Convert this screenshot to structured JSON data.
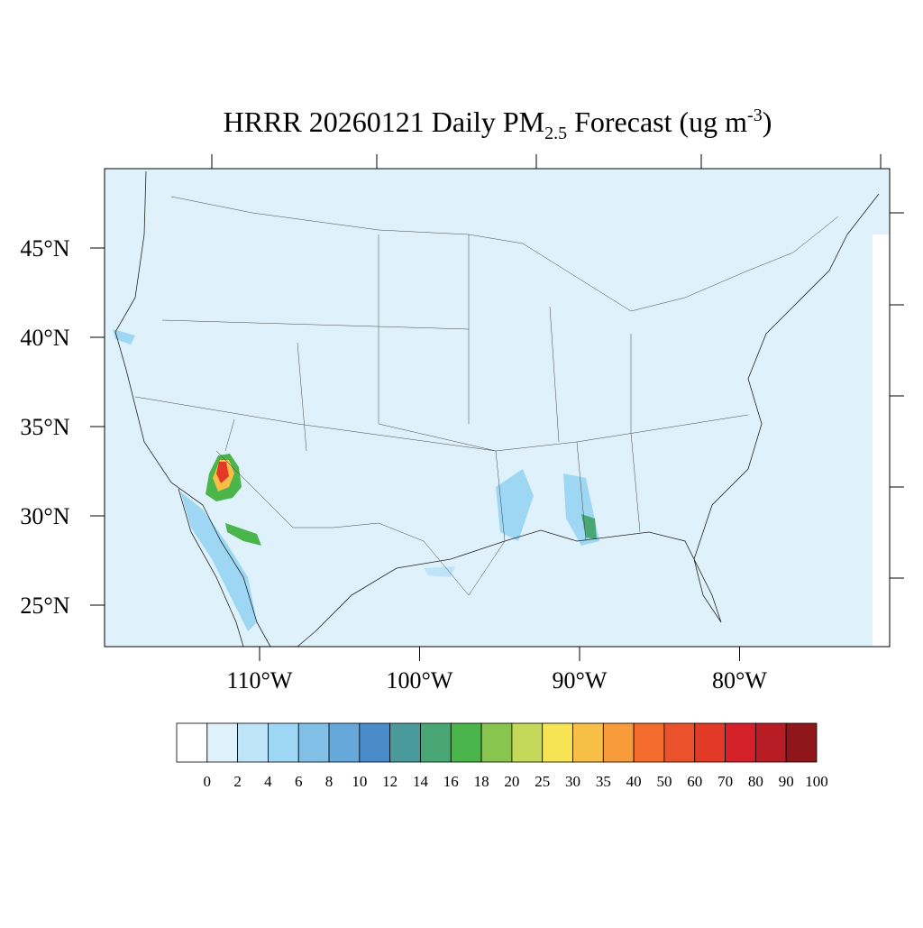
{
  "title": {
    "parts": [
      "HRRR 20260121 Daily PM",
      "2.5",
      " Forecast (ug m",
      "-3",
      ")"
    ]
  },
  "map": {
    "lat_ticks": [
      {
        "value": 45,
        "label": "45°N"
      },
      {
        "value": 40,
        "label": "40°N"
      },
      {
        "value": 35,
        "label": "35°N"
      },
      {
        "value": 30,
        "label": "30°N"
      },
      {
        "value": 25,
        "label": "25°N"
      }
    ],
    "lon_ticks": [
      {
        "value": -110,
        "label": "110°W"
      },
      {
        "value": -100,
        "label": "100°W"
      },
      {
        "value": -90,
        "label": "90°W"
      },
      {
        "value": -80,
        "label": "80°W"
      }
    ]
  },
  "colorbar": {
    "levels": [
      0,
      2,
      4,
      6,
      8,
      10,
      12,
      14,
      16,
      18,
      20,
      25,
      30,
      35,
      40,
      50,
      60,
      70,
      80,
      90,
      100
    ],
    "colors": [
      "#ffffff",
      "#dff2fb",
      "#bde5f7",
      "#9dd7f3",
      "#82bfe6",
      "#67a8da",
      "#4a8cc9",
      "#4a9a9b",
      "#48a775",
      "#4ab54a",
      "#87c54e",
      "#c4d85a",
      "#f7e455",
      "#f8bf47",
      "#f79b3b",
      "#f36b2d",
      "#ea522b",
      "#e23a27",
      "#d42029",
      "#b81c25",
      "#8f161a"
    ]
  }
}
